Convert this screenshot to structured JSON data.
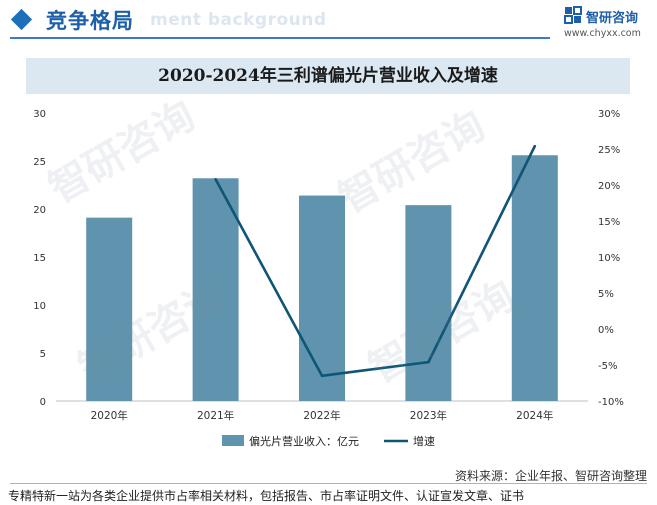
{
  "header": {
    "section_title": "竞争格局",
    "ghost_text": "ment background",
    "brand_name": "智研咨询",
    "brand_url": "www.chyxx.com"
  },
  "footer": {
    "source": "资料来源：企业年报、智研咨询整理",
    "tagline": "专精特新一站为各类企业提供市占率相关材料，包括报告、市占率证明文件、认证宣发文章、证书"
  },
  "watermark_text": "智研咨询",
  "colors": {
    "bar": "#6093ad",
    "line": "#0e5576",
    "accent": "#1d5fa8",
    "title_bg": "#dbe8f2"
  },
  "chart_data": {
    "type": "bar",
    "title": "2020-2024年三利谱偏光片营业收入及增速",
    "categories": [
      "2020年",
      "2021年",
      "2022年",
      "2023年",
      "2024年"
    ],
    "series": [
      {
        "name": "偏光片营业收入：亿元",
        "type": "bar",
        "axis": "left",
        "values": [
          19.1,
          23.2,
          21.4,
          20.4,
          25.6
        ]
      },
      {
        "name": "增速",
        "type": "line",
        "axis": "right",
        "values": [
          null,
          20.8,
          -6.5,
          -4.6,
          25.4
        ]
      }
    ],
    "ylim_left": [
      0,
      30
    ],
    "yticks_left": [
      "0",
      "5",
      "10",
      "15",
      "20",
      "25",
      "30"
    ],
    "ylim_right": [
      -10,
      30
    ],
    "yticks_right": [
      "-10%",
      "-5%",
      "0%",
      "5%",
      "10%",
      "15%",
      "20%",
      "25%",
      "30%"
    ],
    "legend_position": "bottom-center"
  }
}
